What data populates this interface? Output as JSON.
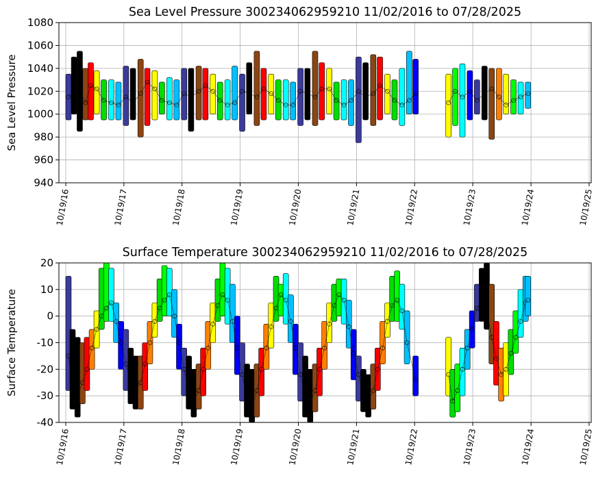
{
  "chart_data": [
    {
      "type": "scatter",
      "title": "Sea Level Pressure 300234062959210  11/02/2016 to 07/28/2025",
      "ylabel": "Sea Level Pressure",
      "xlabel": "",
      "ylim": [
        940,
        1080
      ],
      "yticks": [
        940,
        960,
        980,
        1000,
        1020,
        1040,
        1060,
        1080
      ],
      "xticks": [
        "10/19/16",
        "10/19/17",
        "10/19/18",
        "10/19/19",
        "10/19/20",
        "10/19/21",
        "10/19/22",
        "10/19/23",
        "10/19/24",
        "10/19/25"
      ],
      "xrange_dates": [
        "2016-11-02",
        "2025-07-28"
      ],
      "data_gap": [
        "2022-11-01",
        "2023-05-15"
      ],
      "grid": true,
      "legend": "none",
      "color_scale": "by month (rainbow: black, brown, red, orange, yellow, green, cyan, blue)",
      "series": [
        {
          "x": [
            "2016-11-05",
            "2016-12-10",
            "2017-01-15",
            "2017-02-20",
            "2017-03-25",
            "2017-05-01",
            "2017-06-15",
            "2017-08-01",
            "2017-09-15",
            "2017-11-01",
            "2017-12-15",
            "2018-02-01",
            "2018-03-15",
            "2018-05-01",
            "2018-06-15",
            "2018-08-01",
            "2018-09-15",
            "2018-11-01",
            "2018-12-15",
            "2019-02-01",
            "2019-03-15",
            "2019-05-01",
            "2019-06-15",
            "2019-08-01",
            "2019-09-15",
            "2019-11-01",
            "2019-12-15",
            "2020-02-01",
            "2020-03-15",
            "2020-05-01",
            "2020-06-15",
            "2020-08-01",
            "2020-09-15",
            "2020-11-01",
            "2020-12-15",
            "2021-02-01",
            "2021-03-15",
            "2021-05-01",
            "2021-06-15",
            "2021-08-01",
            "2021-09-15",
            "2021-11-01",
            "2021-12-15",
            "2022-02-01",
            "2022-03-15",
            "2022-05-01",
            "2022-06-15",
            "2022-08-01",
            "2022-09-15",
            "2022-10-25",
            "2023-05-20",
            "2023-07-01",
            "2023-08-15",
            "2023-10-01",
            "2023-11-15",
            "2024-01-01",
            "2024-02-15",
            "2024-04-01",
            "2024-05-15",
            "2024-07-01",
            "2024-08-15",
            "2024-09-30"
          ],
          "y": [
            1015,
            1020,
            1020,
            1010,
            1025,
            1022,
            1012,
            1010,
            1008,
            1015,
            1010,
            1018,
            1028,
            1022,
            1012,
            1010,
            1008,
            1018,
            1015,
            1020,
            1025,
            1020,
            1012,
            1008,
            1010,
            1020,
            1018,
            1015,
            1022,
            1018,
            1012,
            1008,
            1008,
            1020,
            1018,
            1015,
            1022,
            1022,
            1012,
            1008,
            1012,
            1020,
            1015,
            1018,
            1025,
            1020,
            1012,
            1008,
            1012,
            1018,
            1010,
            1020,
            1015,
            1020,
            1012,
            1018,
            1022,
            1015,
            1008,
            1012,
            1015,
            1018
          ],
          "ymin": [
            995,
            1000,
            985,
            995,
            995,
            1000,
            995,
            995,
            995,
            990,
            995,
            980,
            990,
            995,
            1000,
            995,
            995,
            995,
            985,
            995,
            995,
            1000,
            995,
            995,
            995,
            985,
            1000,
            990,
            995,
            1000,
            995,
            995,
            995,
            990,
            995,
            990,
            995,
            1000,
            995,
            995,
            990,
            975,
            995,
            990,
            995,
            1000,
            995,
            990,
            1000,
            1000,
            980,
            990,
            980,
            995,
            1000,
            995,
            978,
            995,
            1000,
            1000,
            1000,
            1005
          ],
          "ymax": [
            1035,
            1050,
            1055,
            1040,
            1045,
            1038,
            1030,
            1030,
            1028,
            1042,
            1040,
            1048,
            1040,
            1038,
            1028,
            1032,
            1030,
            1040,
            1040,
            1042,
            1040,
            1035,
            1028,
            1030,
            1042,
            1035,
            1045,
            1055,
            1040,
            1035,
            1030,
            1030,
            1028,
            1040,
            1040,
            1055,
            1045,
            1040,
            1028,
            1030,
            1030,
            1050,
            1045,
            1052,
            1050,
            1035,
            1030,
            1040,
            1055,
            1048,
            1035,
            1040,
            1044,
            1038,
            1030,
            1042,
            1040,
            1040,
            1035,
            1030,
            1028,
            1028
          ]
        }
      ]
    },
    {
      "type": "scatter",
      "title": "Surface Temperature 300234062959210  11/02/2016 to 07/28/2025",
      "ylabel": "Surface Temperature",
      "xlabel": "",
      "ylim": [
        -40,
        20
      ],
      "yticks": [
        -40,
        -30,
        -20,
        -10,
        0,
        10,
        20
      ],
      "xticks": [
        "10/19/16",
        "10/19/17",
        "10/19/18",
        "10/19/19",
        "10/19/20",
        "10/19/21",
        "10/19/22",
        "10/19/23",
        "10/19/24",
        "10/19/25"
      ],
      "xrange_dates": [
        "2016-11-02",
        "2025-07-28"
      ],
      "data_gap": [
        "2022-11-01",
        "2023-05-15"
      ],
      "grid": true,
      "legend": "none",
      "color_scale": "by month (rainbow: black, brown, red, orange, yellow, green, cyan, blue)",
      "series": [
        {
          "x": [
            "2016-11-05",
            "2016-12-01",
            "2017-01-01",
            "2017-02-01",
            "2017-03-01",
            "2017-04-01",
            "2017-05-01",
            "2017-06-01",
            "2017-07-01",
            "2017-08-01",
            "2017-09-01",
            "2017-10-01",
            "2017-11-01",
            "2017-12-01",
            "2018-01-01",
            "2018-02-01",
            "2018-03-01",
            "2018-04-01",
            "2018-05-01",
            "2018-06-01",
            "2018-07-01",
            "2018-08-01",
            "2018-09-01",
            "2018-10-01",
            "2018-11-01",
            "2018-12-01",
            "2019-01-01",
            "2019-02-01",
            "2019-03-01",
            "2019-04-01",
            "2019-05-01",
            "2019-06-01",
            "2019-07-01",
            "2019-08-01",
            "2019-09-01",
            "2019-10-01",
            "2019-11-01",
            "2019-12-01",
            "2020-01-01",
            "2020-02-01",
            "2020-03-01",
            "2020-04-01",
            "2020-05-01",
            "2020-06-01",
            "2020-07-01",
            "2020-08-01",
            "2020-09-01",
            "2020-10-01",
            "2020-11-01",
            "2020-12-01",
            "2021-01-01",
            "2021-02-01",
            "2021-03-01",
            "2021-04-01",
            "2021-05-01",
            "2021-06-01",
            "2021-07-01",
            "2021-08-01",
            "2021-09-01",
            "2021-10-01",
            "2021-11-01",
            "2021-12-01",
            "2022-01-01",
            "2022-02-01",
            "2022-03-01",
            "2022-04-01",
            "2022-05-01",
            "2022-06-01",
            "2022-07-01",
            "2022-08-01",
            "2022-09-01",
            "2022-10-25",
            "2023-05-20",
            "2023-06-15",
            "2023-07-15",
            "2023-08-15",
            "2023-09-15",
            "2023-10-15",
            "2023-11-15",
            "2023-12-15",
            "2024-01-15",
            "2024-02-15",
            "2024-03-15",
            "2024-04-15",
            "2024-05-15",
            "2024-06-15",
            "2024-07-15",
            "2024-08-15",
            "2024-09-15",
            "2024-09-30"
          ],
          "y": [
            -15,
            -25,
            -30,
            -25,
            -20,
            -12,
            -5,
            0,
            3,
            5,
            -2,
            -10,
            -18,
            -25,
            -28,
            -25,
            -18,
            -10,
            -2,
            3,
            6,
            8,
            0,
            -10,
            -20,
            -28,
            -32,
            -28,
            -20,
            -12,
            -3,
            4,
            8,
            6,
            -2,
            -12,
            -22,
            -30,
            -35,
            -28,
            -20,
            -12,
            -4,
            3,
            8,
            6,
            -2,
            -12,
            -22,
            -30,
            -33,
            -28,
            -20,
            -12,
            -3,
            4,
            8,
            6,
            -4,
            -14,
            -22,
            -30,
            -32,
            -28,
            -20,
            -12,
            -2,
            4,
            6,
            2,
            -10,
            -24,
            -22,
            -32,
            -28,
            -20,
            -12,
            -5,
            3,
            6,
            2,
            -8,
            -16,
            -22,
            -20,
            -14,
            -8,
            -2,
            5,
            6
          ],
          "ymin": [
            -28,
            -35,
            -38,
            -33,
            -28,
            -20,
            -12,
            -5,
            -2,
            -2,
            -10,
            -20,
            -28,
            -33,
            -35,
            -35,
            -28,
            -18,
            -8,
            -2,
            0,
            0,
            -8,
            -20,
            -30,
            -35,
            -38,
            -35,
            -30,
            -20,
            -10,
            -2,
            0,
            -3,
            -10,
            -22,
            -32,
            -38,
            -40,
            -38,
            -30,
            -20,
            -12,
            -2,
            0,
            -3,
            -10,
            -22,
            -32,
            -38,
            -40,
            -36,
            -30,
            -20,
            -10,
            -2,
            0,
            -3,
            -12,
            -24,
            -32,
            -36,
            -38,
            -35,
            -28,
            -18,
            -8,
            -2,
            -2,
            -5,
            -18,
            -30,
            -30,
            -38,
            -36,
            -30,
            -20,
            -12,
            -2,
            -2,
            -5,
            -18,
            -26,
            -32,
            -30,
            -22,
            -14,
            -8,
            -2,
            0
          ],
          "ymax": [
            15,
            -5,
            -8,
            -10,
            -8,
            -5,
            2,
            18,
            20,
            18,
            5,
            -2,
            -5,
            -12,
            -15,
            -15,
            -10,
            -2,
            5,
            14,
            19,
            18,
            10,
            -3,
            -12,
            -15,
            -20,
            -18,
            -12,
            -2,
            5,
            14,
            20,
            18,
            12,
            0,
            -10,
            -18,
            -20,
            -18,
            -12,
            -3,
            5,
            15,
            12,
            16,
            8,
            -3,
            -10,
            -15,
            -20,
            -18,
            -12,
            -2,
            5,
            12,
            14,
            14,
            6,
            -5,
            -15,
            -20,
            -22,
            -18,
            -12,
            -2,
            5,
            15,
            17,
            12,
            2,
            -15,
            -8,
            -20,
            -18,
            -12,
            -5,
            2,
            12,
            18,
            20,
            12,
            -2,
            -12,
            -10,
            -5,
            2,
            10,
            15,
            15
          ]
        }
      ]
    }
  ]
}
